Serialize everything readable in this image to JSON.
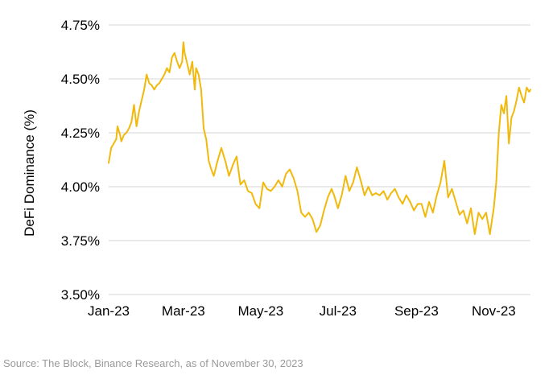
{
  "chart_data": {
    "type": "line",
    "title": "",
    "xlabel": "",
    "ylabel": "DeFi Dominance (%)",
    "ylim": [
      3.5,
      4.75
    ],
    "yticks": [
      "3.50%",
      "3.75%",
      "4.00%",
      "4.25%",
      "4.50%",
      "4.75%"
    ],
    "ytick_values": [
      3.5,
      3.75,
      4.0,
      4.25,
      4.5,
      4.75
    ],
    "xlim": [
      "2023-01-01",
      "2023-11-30"
    ],
    "xticks": [
      "Jan-23",
      "Mar-23",
      "May-23",
      "Jul-23",
      "Sep-23",
      "Nov-23"
    ],
    "xtick_dates": [
      "2023-01-01",
      "2023-03-01",
      "2023-05-01",
      "2023-07-01",
      "2023-09-01",
      "2023-11-01"
    ],
    "grid": "horizontal",
    "legend": "none",
    "series": [
      {
        "color": "#F0B90B",
        "x": [
          "2023-01-01",
          "2023-01-03",
          "2023-01-05",
          "2023-01-07",
          "2023-01-08",
          "2023-01-10",
          "2023-01-11",
          "2023-01-13",
          "2023-01-15",
          "2023-01-17",
          "2023-01-19",
          "2023-01-21",
          "2023-01-23",
          "2023-01-25",
          "2023-01-27",
          "2023-01-29",
          "2023-01-31",
          "2023-02-02",
          "2023-02-04",
          "2023-02-06",
          "2023-02-08",
          "2023-02-10",
          "2023-02-12",
          "2023-02-14",
          "2023-02-16",
          "2023-02-18",
          "2023-02-20",
          "2023-02-22",
          "2023-02-24",
          "2023-02-26",
          "2023-02-28",
          "2023-03-01",
          "2023-03-02",
          "2023-03-04",
          "2023-03-06",
          "2023-03-08",
          "2023-03-10",
          "2023-03-11",
          "2023-03-13",
          "2023-03-15",
          "2023-03-17",
          "2023-03-19",
          "2023-03-21",
          "2023-03-23",
          "2023-03-25",
          "2023-03-28",
          "2023-03-31",
          "2023-04-03",
          "2023-04-06",
          "2023-04-09",
          "2023-04-12",
          "2023-04-15",
          "2023-04-18",
          "2023-04-21",
          "2023-04-24",
          "2023-04-27",
          "2023-04-30",
          "2023-05-03",
          "2023-05-06",
          "2023-05-09",
          "2023-05-12",
          "2023-05-15",
          "2023-05-18",
          "2023-05-21",
          "2023-05-24",
          "2023-05-27",
          "2023-05-30",
          "2023-06-02",
          "2023-06-05",
          "2023-06-08",
          "2023-06-11",
          "2023-06-14",
          "2023-06-17",
          "2023-06-20",
          "2023-06-23",
          "2023-06-26",
          "2023-06-28",
          "2023-07-01",
          "2023-07-04",
          "2023-07-07",
          "2023-07-10",
          "2023-07-13",
          "2023-07-16",
          "2023-07-19",
          "2023-07-22",
          "2023-07-25",
          "2023-07-28",
          "2023-07-31",
          "2023-08-03",
          "2023-08-06",
          "2023-08-09",
          "2023-08-12",
          "2023-08-15",
          "2023-08-18",
          "2023-08-21",
          "2023-08-24",
          "2023-08-27",
          "2023-08-30",
          "2023-09-02",
          "2023-09-05",
          "2023-09-08",
          "2023-09-11",
          "2023-09-14",
          "2023-09-17",
          "2023-09-20",
          "2023-09-23",
          "2023-09-26",
          "2023-09-29",
          "2023-10-02",
          "2023-10-05",
          "2023-10-08",
          "2023-10-11",
          "2023-10-14",
          "2023-10-17",
          "2023-10-20",
          "2023-10-23",
          "2023-10-26",
          "2023-10-29",
          "2023-11-01",
          "2023-11-03",
          "2023-11-05",
          "2023-11-07",
          "2023-11-09",
          "2023-11-11",
          "2023-11-13",
          "2023-11-15",
          "2023-11-17",
          "2023-11-19",
          "2023-11-21",
          "2023-11-23",
          "2023-11-25",
          "2023-11-27",
          "2023-11-29",
          "2023-11-30"
        ],
        "y": [
          4.11,
          4.18,
          4.2,
          4.22,
          4.28,
          4.24,
          4.21,
          4.24,
          4.25,
          4.27,
          4.3,
          4.38,
          4.28,
          4.35,
          4.4,
          4.45,
          4.52,
          4.48,
          4.47,
          4.45,
          4.47,
          4.48,
          4.5,
          4.52,
          4.55,
          4.53,
          4.6,
          4.62,
          4.58,
          4.55,
          4.58,
          4.67,
          4.62,
          4.57,
          4.52,
          4.58,
          4.45,
          4.55,
          4.52,
          4.45,
          4.27,
          4.22,
          4.12,
          4.08,
          4.05,
          4.12,
          4.18,
          4.12,
          4.05,
          4.1,
          4.14,
          4.01,
          4.03,
          3.98,
          3.97,
          3.92,
          3.9,
          4.02,
          3.99,
          3.98,
          4.0,
          4.03,
          4.0,
          4.06,
          4.08,
          4.04,
          3.98,
          3.88,
          3.86,
          3.88,
          3.85,
          3.79,
          3.82,
          3.89,
          3.95,
          3.99,
          3.96,
          3.9,
          3.96,
          4.05,
          3.98,
          4.02,
          4.09,
          4.03,
          3.96,
          4.0,
          3.96,
          3.97,
          3.96,
          3.98,
          3.94,
          3.97,
          3.99,
          3.95,
          3.92,
          3.96,
          3.93,
          3.89,
          3.92,
          3.92,
          3.86,
          3.93,
          3.88,
          3.96,
          4.02,
          4.12,
          3.95,
          3.99,
          3.93,
          3.87,
          3.89,
          3.83,
          3.9,
          3.78,
          3.88,
          3.85,
          3.88,
          3.78,
          3.9,
          4.02,
          4.25,
          4.38,
          4.34,
          4.42,
          4.2,
          4.32,
          4.35,
          4.4,
          4.46,
          4.42,
          4.39,
          4.46,
          4.44,
          4.45
        ]
      }
    ]
  },
  "source": "Source: The Block, Binance Research, as of November 30, 2023"
}
